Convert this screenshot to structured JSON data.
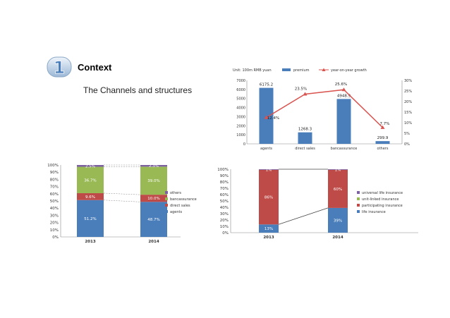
{
  "header": {
    "badge_number": "1",
    "title": "Context",
    "subtitle": "The Channels and structures"
  },
  "chart_data": [
    {
      "type": "bar+line",
      "unit_label": "Unit: 100m RMB yuan",
      "categories": [
        "agents",
        "direct sales",
        "bancassurance",
        "others"
      ],
      "series": [
        {
          "name": "premium",
          "type": "bar",
          "color": "#4a7ebb",
          "values": [
            6175.2,
            1268.3,
            4948.9,
            299.9
          ],
          "labels": [
            "6175.2",
            "1268.3",
            "4948.9",
            "299.9"
          ]
        },
        {
          "name": "year-on-year growth",
          "type": "line",
          "color": "#d9534f",
          "values": [
            12.4,
            23.5,
            25.6,
            7.7
          ],
          "labels": [
            "12.4%",
            "23.5%",
            "25.6%",
            "7.7%"
          ]
        }
      ],
      "ylim": [
        0,
        7000
      ],
      "yticks": [
        "0",
        "1000",
        "2000",
        "3000",
        "4000",
        "5000",
        "6000",
        "7000"
      ],
      "y2lim": [
        0,
        30
      ],
      "y2ticks": [
        "0%",
        "5%",
        "10%",
        "15%",
        "20%",
        "25%",
        "30%"
      ],
      "grid": false,
      "legend": "top"
    },
    {
      "type": "stacked-bar",
      "categories": [
        "2013",
        "2014"
      ],
      "series": [
        {
          "name": "agents",
          "color": "#4a7ebb",
          "values": [
            51.2,
            48.7
          ],
          "labels": [
            "51.2%",
            "48.7%"
          ]
        },
        {
          "name": "direct sales",
          "color": "#be4b48",
          "values": [
            9.6,
            10.0
          ],
          "labels": [
            "9.6%",
            "10.0%"
          ]
        },
        {
          "name": "bancassurance",
          "color": "#98b954",
          "values": [
            36.7,
            39.0
          ],
          "labels": [
            "36.7%",
            "39.0%"
          ]
        },
        {
          "name": "others",
          "color": "#7d60a0",
          "values": [
            2.5,
            2.3
          ],
          "labels": [
            "2.5%",
            "2.3%"
          ]
        }
      ],
      "ylim": [
        0,
        100
      ],
      "yticks": [
        "0%",
        "10%",
        "20%",
        "30%",
        "40%",
        "50%",
        "60%",
        "70%",
        "80%",
        "90%",
        "100%"
      ],
      "grid": false,
      "legend": "right"
    },
    {
      "type": "stacked-bar",
      "categories": [
        "2013",
        "2014"
      ],
      "series": [
        {
          "name": "life insurance",
          "color": "#4a7ebb",
          "values": [
            13,
            39
          ],
          "labels": [
            "13%",
            "39%"
          ]
        },
        {
          "name": "participating insurance",
          "color": "#be4b48",
          "values": [
            86,
            60
          ],
          "labels": [
            "86%",
            "60%"
          ]
        },
        {
          "name": "unit-linked insurance",
          "color": "#98b954",
          "values": [
            0,
            0
          ],
          "labels": [
            "",
            ""
          ]
        },
        {
          "name": "universal life insurance",
          "color": "#7d60a0",
          "values": [
            1,
            1
          ],
          "labels": [
            "1%",
            "1%"
          ]
        }
      ],
      "ylim": [
        0,
        100
      ],
      "yticks": [
        "0%",
        "10%",
        "20%",
        "30%",
        "40%",
        "50%",
        "60%",
        "70%",
        "80%",
        "90%",
        "100%"
      ],
      "grid": false,
      "legend": "right"
    }
  ]
}
